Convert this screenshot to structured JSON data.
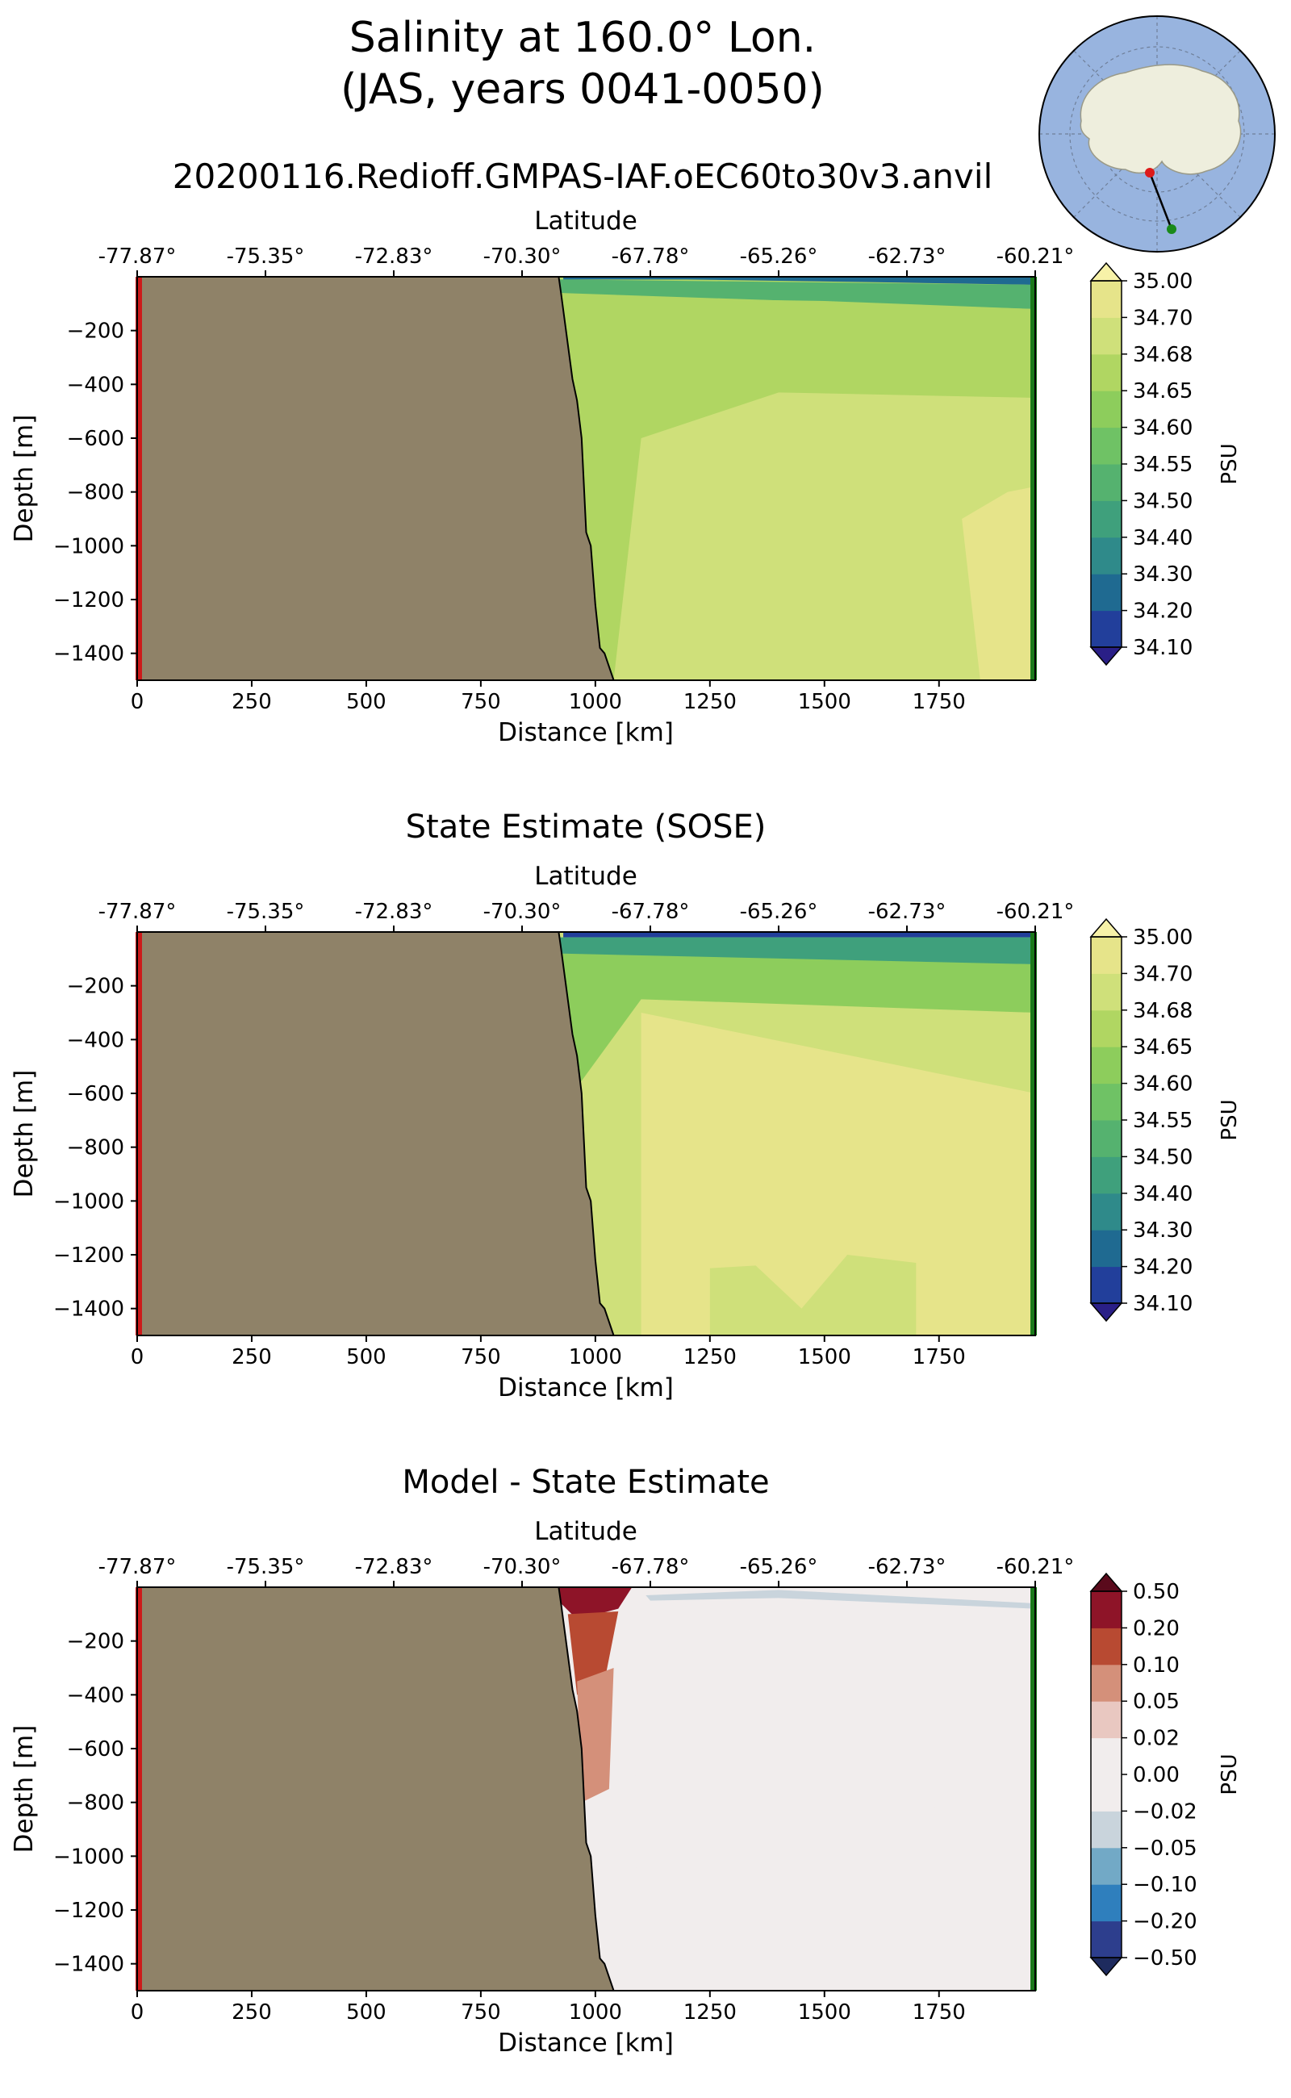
{
  "header": {
    "title_line1": "Salinity at 160.0° Lon.",
    "title_line2": "(JAS, years 0041-0050)",
    "run_name": "20200116.Redioff.GMPAS-IAF.oEC60to30v3.anvil"
  },
  "colors": {
    "land": "#8f8268",
    "start_marker": "#cc1a1a",
    "end_marker": "#1a7a1a",
    "ocean_map": "#98b4df",
    "ice_map": "#eeeedd"
  },
  "chart_data": [
    {
      "type": "contourf",
      "title": "",
      "xlabel": "Distance [km]",
      "ylabel": "Depth [m]",
      "top_axis_label": "Latitude",
      "xlim": [
        0,
        1960
      ],
      "ylim": [
        -1500,
        0
      ],
      "x_ticks": [
        0,
        250,
        500,
        750,
        1000,
        1250,
        1500,
        1750
      ],
      "y_ticks": [
        -200,
        -400,
        -600,
        -800,
        -1000,
        -1200,
        -1400
      ],
      "lat_ticks": [
        "-77.87°",
        "-75.35°",
        "-72.83°",
        "-70.30°",
        "-67.78°",
        "-65.26°",
        "-62.73°",
        "-60.21°"
      ],
      "colorbar": {
        "label": "PSU",
        "levels": [
          "34.10",
          "34.20",
          "34.30",
          "34.40",
          "34.50",
          "34.55",
          "34.60",
          "34.65",
          "34.68",
          "34.70",
          "35.00"
        ],
        "colors": [
          "#2a1f87",
          "#223f9b",
          "#1f6a91",
          "#2f8a8a",
          "#3fa07c",
          "#55b26f",
          "#6fc265",
          "#8dcd5c",
          "#b0d662",
          "#cfe07a",
          "#e6e48a",
          "#f7f2a8"
        ]
      },
      "bottom_depth_profile": {
        "distance_km": [
          920,
          925,
          950,
          960,
          970,
          980,
          990,
          1000,
          1010,
          1020,
          1040
        ],
        "depth_m": [
          0,
          -60,
          -380,
          -460,
          -600,
          -950,
          -1000,
          -1220,
          -1380,
          -1400,
          -1500
        ]
      },
      "field_description_km_depth": [
        {
          "band": "34.20",
          "region": [
            [
              930,
              0
            ],
            [
              1960,
              0
            ],
            [
              1960,
              -30
            ],
            [
              1600,
              -20
            ],
            [
              1200,
              -10
            ],
            [
              930,
              -10
            ]
          ]
        },
        {
          "band": "34.50",
          "region": [
            [
              920,
              -10
            ],
            [
              1960,
              -30
            ],
            [
              1960,
              -120
            ],
            [
              1500,
              -90
            ],
            [
              1100,
              -80
            ],
            [
              920,
              -60
            ]
          ]
        },
        {
          "band": "34.65",
          "region": [
            [
              920,
              -60
            ],
            [
              1960,
              -120
            ],
            [
              1960,
              -450
            ],
            [
              1400,
              -430
            ],
            [
              1100,
              -600
            ],
            [
              950,
              -700
            ]
          ]
        },
        {
          "band": "34.68",
          "region": [
            [
              1100,
              -600
            ],
            [
              1400,
              -430
            ],
            [
              1960,
              -450
            ],
            [
              1960,
              -1500
            ],
            [
              1040,
              -1500
            ]
          ]
        },
        {
          "band": "34.70",
          "region": [
            [
              1800,
              -900
            ],
            [
              1900,
              -800
            ],
            [
              1960,
              -780
            ],
            [
              1960,
              -1500
            ],
            [
              1840,
              -1500
            ]
          ]
        }
      ]
    },
    {
      "type": "contourf",
      "title": "State Estimate (SOSE)",
      "xlabel": "Distance [km]",
      "ylabel": "Depth [m]",
      "top_axis_label": "Latitude",
      "xlim": [
        0,
        1960
      ],
      "ylim": [
        -1500,
        0
      ],
      "x_ticks": [
        0,
        250,
        500,
        750,
        1000,
        1250,
        1500,
        1750
      ],
      "y_ticks": [
        -200,
        -400,
        -600,
        -800,
        -1000,
        -1200,
        -1400
      ],
      "lat_ticks": [
        "-77.87°",
        "-75.35°",
        "-72.83°",
        "-70.30°",
        "-67.78°",
        "-65.26°",
        "-62.73°",
        "-60.21°"
      ],
      "colorbar": {
        "label": "PSU",
        "levels": [
          "34.10",
          "34.20",
          "34.30",
          "34.40",
          "34.50",
          "34.55",
          "34.60",
          "34.65",
          "34.68",
          "34.70",
          "35.00"
        ],
        "colors": [
          "#2a1f87",
          "#223f9b",
          "#1f6a91",
          "#2f8a8a",
          "#3fa07c",
          "#55b26f",
          "#6fc265",
          "#8dcd5c",
          "#b0d662",
          "#cfe07a",
          "#e6e48a",
          "#f7f2a8"
        ]
      },
      "bottom_depth_profile": {
        "distance_km": [
          920,
          925,
          950,
          960,
          970,
          980,
          990,
          1000,
          1010,
          1020,
          1040
        ],
        "depth_m": [
          0,
          -60,
          -380,
          -460,
          -600,
          -950,
          -1000,
          -1220,
          -1380,
          -1400,
          -1500
        ]
      },
      "field_description_km_depth": [
        {
          "band": "34.10",
          "region": [
            [
              930,
              0
            ],
            [
              1960,
              0
            ],
            [
              1960,
              -20
            ],
            [
              1200,
              -20
            ],
            [
              930,
              -20
            ]
          ]
        },
        {
          "band": "34.40",
          "region": [
            [
              920,
              -20
            ],
            [
              1960,
              -20
            ],
            [
              1960,
              -120
            ],
            [
              1100,
              -100
            ],
            [
              920,
              -80
            ]
          ]
        },
        {
          "band": "34.60",
          "region": [
            [
              920,
              -80
            ],
            [
              1960,
              -120
            ],
            [
              1960,
              -300
            ],
            [
              1100,
              -250
            ],
            [
              950,
              -600
            ]
          ]
        },
        {
          "band": "34.70",
          "region": [
            [
              1100,
              -300
            ],
            [
              1960,
              -600
            ],
            [
              1960,
              -1500
            ],
            [
              1100,
              -1500
            ]
          ]
        },
        {
          "band": "34.68",
          "region": [
            [
              1250,
              -1250
            ],
            [
              1350,
              -1240
            ],
            [
              1450,
              -1400
            ],
            [
              1550,
              -1200
            ],
            [
              1700,
              -1230
            ],
            [
              1700,
              -1500
            ],
            [
              1250,
              -1500
            ]
          ]
        }
      ]
    },
    {
      "type": "contourf",
      "title": "Model - State Estimate",
      "xlabel": "Distance [km]",
      "ylabel": "Depth [m]",
      "top_axis_label": "Latitude",
      "xlim": [
        0,
        1960
      ],
      "ylim": [
        -1500,
        0
      ],
      "x_ticks": [
        0,
        250,
        500,
        750,
        1000,
        1250,
        1500,
        1750
      ],
      "y_ticks": [
        -200,
        -400,
        -600,
        -800,
        -1000,
        -1200,
        -1400
      ],
      "lat_ticks": [
        "-77.87°",
        "-75.35°",
        "-72.83°",
        "-70.30°",
        "-67.78°",
        "-65.26°",
        "-62.73°",
        "-60.21°"
      ],
      "colorbar": {
        "label": "PSU",
        "levels": [
          "−0.50",
          "−0.20",
          "−0.10",
          "−0.05",
          "−0.02",
          "0.00",
          "0.02",
          "0.05",
          "0.10",
          "0.20",
          "0.50"
        ],
        "colors": [
          "#1e2b5e",
          "#2d3e8d",
          "#2f7fbd",
          "#72a9c6",
          "#c9d4dc",
          "#f1eded",
          "#f1eded",
          "#e9c8c1",
          "#d4907a",
          "#b84a32",
          "#8e1428",
          "#5a0a1c"
        ]
      },
      "bottom_depth_profile": {
        "distance_km": [
          920,
          925,
          950,
          960,
          970,
          980,
          990,
          1000,
          1010,
          1020,
          1040
        ],
        "depth_m": [
          0,
          -60,
          -380,
          -460,
          -600,
          -950,
          -1000,
          -1220,
          -1380,
          -1400,
          -1500
        ]
      },
      "field_description_km_depth": [
        {
          "band": "0.20",
          "region": [
            [
              920,
              0
            ],
            [
              1080,
              0
            ],
            [
              1050,
              -80
            ],
            [
              960,
              -120
            ],
            [
              925,
              -60
            ]
          ]
        },
        {
          "band": "0.10",
          "region": [
            [
              940,
              -100
            ],
            [
              1050,
              -90
            ],
            [
              1020,
              -350
            ],
            [
              960,
              -400
            ]
          ]
        },
        {
          "band": "0.05",
          "region": [
            [
              960,
              -350
            ],
            [
              1040,
              -300
            ],
            [
              1030,
              -750
            ],
            [
              970,
              -800
            ]
          ]
        },
        {
          "band": "−0.05",
          "region": [
            [
              1110,
              -30
            ],
            [
              1400,
              -10
            ],
            [
              1960,
              -60
            ],
            [
              1960,
              -80
            ],
            [
              1400,
              -40
            ],
            [
              1120,
              -50
            ]
          ]
        },
        {
          "band": "−0.02",
          "region": [
            [
              1100,
              -200
            ],
            [
              1250,
              -250
            ],
            [
              1300,
              -400
            ],
            [
              1200,
              -700
            ],
            [
              1180,
              -1500
            ],
            [
              1080,
              -1000
            ]
          ]
        },
        {
          "band": "−0.02",
          "region": [
            [
              1780,
              -600
            ],
            [
              1900,
              -850
            ],
            [
              1920,
              -1300
            ],
            [
              1960,
              -1500
            ],
            [
              1760,
              -1500
            ],
            [
              1740,
              -800
            ]
          ]
        }
      ]
    }
  ]
}
